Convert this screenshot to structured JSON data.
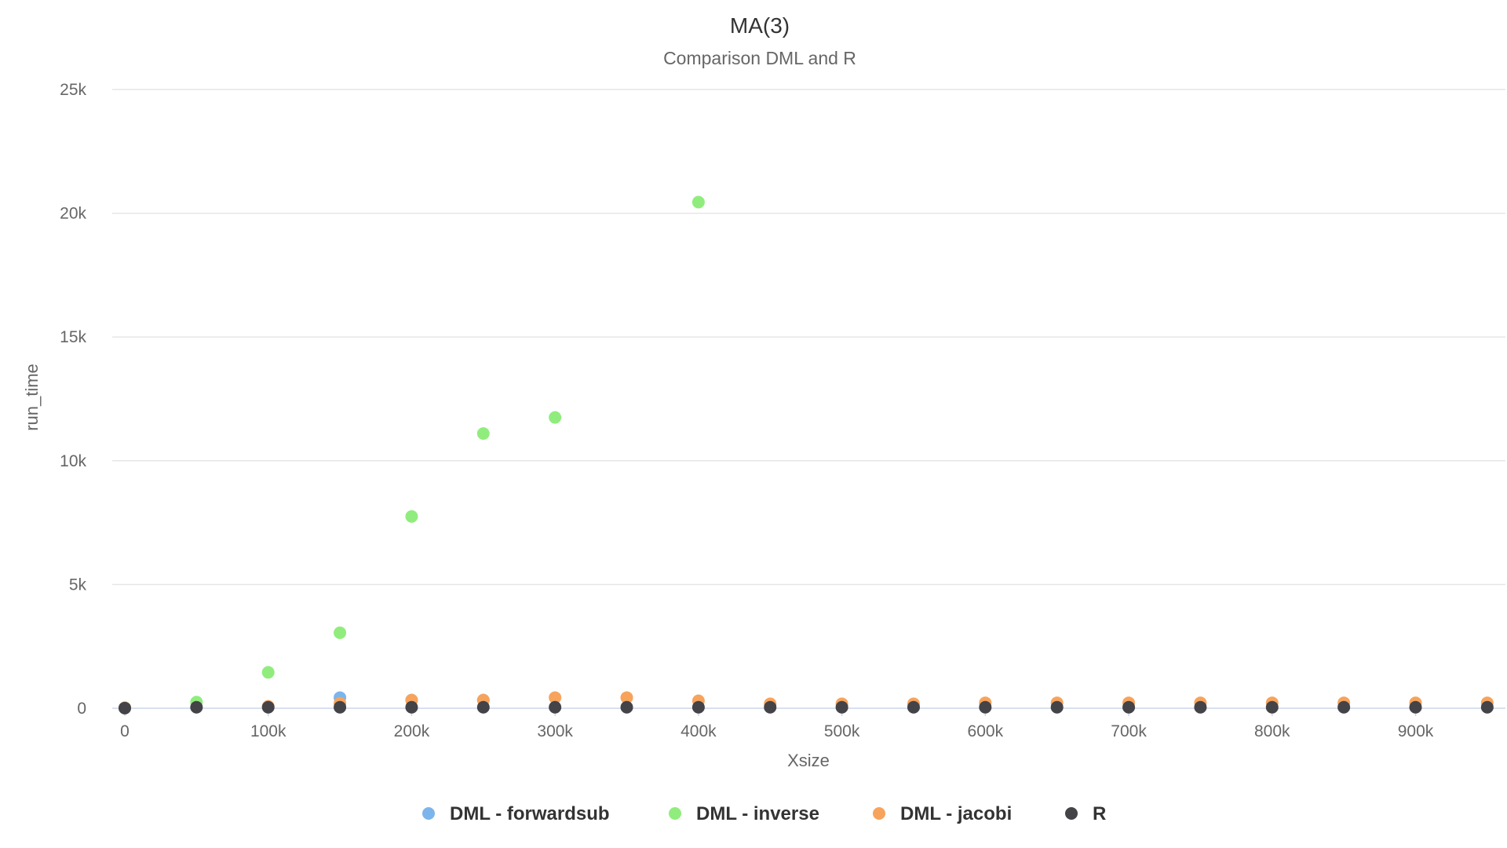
{
  "chart_data": {
    "type": "scatter",
    "title": "MA(3)",
    "subtitle": "Comparison DML and R",
    "xlabel": "Xsize",
    "ylabel": "run_time",
    "xlim": [
      0,
      955000
    ],
    "ylim": [
      0,
      25000
    ],
    "x_ticks": [
      0,
      100000,
      200000,
      300000,
      400000,
      500000,
      600000,
      700000,
      800000,
      900000
    ],
    "x_tick_labels": [
      "0",
      "100k",
      "200k",
      "300k",
      "400k",
      "500k",
      "600k",
      "700k",
      "800k",
      "900k"
    ],
    "y_ticks": [
      0,
      5000,
      10000,
      15000,
      20000,
      25000
    ],
    "y_tick_labels": [
      "0",
      "5k",
      "10k",
      "15k",
      "20k",
      "25k"
    ],
    "grid": true,
    "legend_position": "bottom-center",
    "series": [
      {
        "name": "DML - forwardsub",
        "color": "#7cb5ec",
        "points": [
          [
            0,
            20
          ],
          [
            150000,
            430
          ],
          [
            200000,
            330
          ],
          [
            250000,
            330
          ]
        ]
      },
      {
        "name": "DML - inverse",
        "color": "#90ed7d",
        "points": [
          [
            0,
            20
          ],
          [
            50000,
            250
          ],
          [
            100000,
            1450
          ],
          [
            150000,
            3050
          ],
          [
            200000,
            7750
          ],
          [
            250000,
            11100
          ],
          [
            300000,
            11750
          ],
          [
            400000,
            20450
          ]
        ]
      },
      {
        "name": "DML - jacobi",
        "color": "#f7a35c",
        "points": [
          [
            0,
            20
          ],
          [
            100000,
            80
          ],
          [
            150000,
            200
          ],
          [
            200000,
            330
          ],
          [
            250000,
            330
          ],
          [
            300000,
            430
          ],
          [
            350000,
            430
          ],
          [
            400000,
            300
          ],
          [
            450000,
            180
          ],
          [
            500000,
            180
          ],
          [
            550000,
            180
          ],
          [
            600000,
            220
          ],
          [
            650000,
            220
          ],
          [
            700000,
            220
          ],
          [
            750000,
            220
          ],
          [
            800000,
            220
          ],
          [
            850000,
            220
          ],
          [
            900000,
            220
          ],
          [
            950000,
            220
          ]
        ]
      },
      {
        "name": "R",
        "color": "#434348",
        "points": [
          [
            0,
            5
          ],
          [
            50000,
            40
          ],
          [
            100000,
            40
          ],
          [
            150000,
            40
          ],
          [
            200000,
            40
          ],
          [
            250000,
            40
          ],
          [
            300000,
            40
          ],
          [
            350000,
            40
          ],
          [
            400000,
            40
          ],
          [
            450000,
            40
          ],
          [
            500000,
            40
          ],
          [
            550000,
            40
          ],
          [
            600000,
            40
          ],
          [
            650000,
            40
          ],
          [
            700000,
            40
          ],
          [
            750000,
            40
          ],
          [
            800000,
            40
          ],
          [
            850000,
            40
          ],
          [
            900000,
            40
          ],
          [
            950000,
            40
          ]
        ]
      }
    ]
  }
}
